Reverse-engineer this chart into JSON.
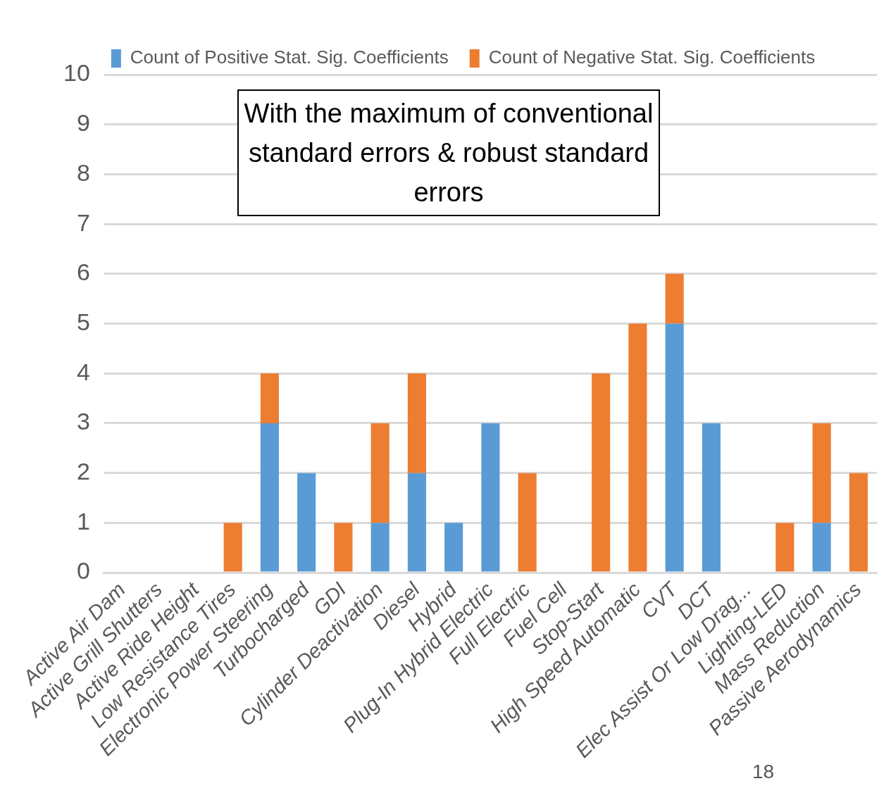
{
  "chart_data": {
    "type": "bar",
    "stacked": true,
    "categories": [
      "Active Air Dam",
      "Active Grill Shutters",
      "Active Ride Height",
      "Low Resistance Tires",
      "Electronic Power Steering",
      "Turbocharged",
      "GDI",
      "Cylinder Deactivation",
      "Diesel",
      "Hybrid",
      "Plug-In Hybrid Electric",
      "Full Electric",
      "Fuel Cell",
      "Stop-Start",
      "High Speed Automatic",
      "CVT",
      "DCT",
      "Elec Assist Or Low Drag...",
      "Lighting-LED",
      "Mass Reduction",
      "Passive Aerodynamics"
    ],
    "series": [
      {
        "name": "Count of Positive Stat. Sig. Coefficients",
        "color": "#5b9bd5",
        "values": [
          0,
          0,
          0,
          0,
          3,
          2,
          0,
          1,
          2,
          1,
          3,
          0,
          0,
          0,
          0,
          5,
          3,
          0,
          0,
          1,
          0
        ]
      },
      {
        "name": "Count of Negative Stat. Sig. Coefficients",
        "color": "#ed7d31",
        "values": [
          0,
          0,
          0,
          1,
          1,
          0,
          1,
          2,
          2,
          0,
          0,
          2,
          0,
          4,
          5,
          1,
          0,
          0,
          1,
          2,
          2
        ]
      }
    ],
    "ylim": [
      0,
      10
    ],
    "yticks": [
      0,
      1,
      2,
      3,
      4,
      5,
      6,
      7,
      8,
      9,
      10
    ],
    "grid": "y",
    "legend": "top",
    "annotations": [
      "With the maximum of conventional standard errors & robust standard errors",
      "18"
    ]
  }
}
